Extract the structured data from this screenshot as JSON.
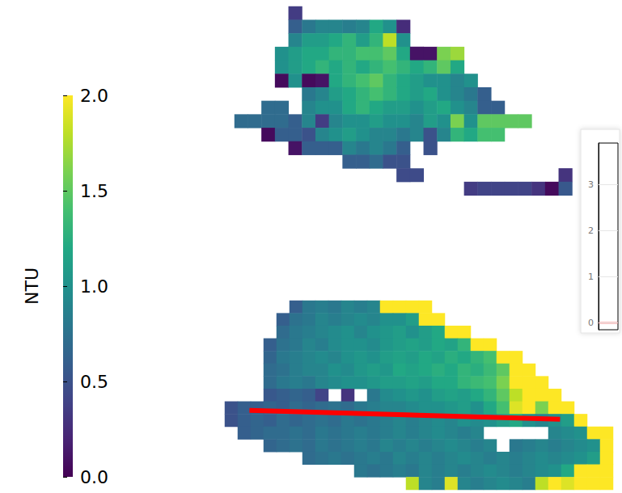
{
  "chart_data": [
    {
      "type": "heatmap",
      "tick_labels": false,
      "colorbar": {
        "label": "NTU",
        "range": [
          0,
          2
        ],
        "ticks": [
          {
            "value": 0,
            "label": "0.0"
          },
          {
            "value": 0.5,
            "label": "0.5"
          },
          {
            "value": 1,
            "label": "1.0"
          },
          {
            "value": 1.5,
            "label": "1.5"
          },
          {
            "value": 2,
            "label": "2.0"
          }
        ]
      },
      "cells": [
        [
          null,
          null,
          null,
          null,
          0.35,
          null,
          null,
          null,
          null,
          null,
          null,
          null,
          null,
          null,
          null,
          null,
          null,
          null,
          null,
          null,
          null,
          null,
          null,
          null,
          null
        ],
        [
          null,
          null,
          null,
          null,
          0.6,
          0.8,
          0.9,
          0.9,
          0.85,
          0.9,
          1.2,
          1.0,
          0.25,
          null,
          null,
          null,
          null,
          null,
          null,
          null,
          null,
          null,
          null,
          null,
          null
        ],
        [
          null,
          null,
          null,
          null,
          0.9,
          1.1,
          1.1,
          1.2,
          1.3,
          1.1,
          1.3,
          1.8,
          1.0,
          null,
          null,
          null,
          null,
          null,
          null,
          null,
          null,
          null,
          null,
          null,
          null
        ],
        [
          null,
          null,
          null,
          1.0,
          1.1,
          1.2,
          1.2,
          1.3,
          1.3,
          1.4,
          1.4,
          1.5,
          1.2,
          0.1,
          0.1,
          1.6,
          1.7,
          null,
          null,
          null,
          null,
          null,
          null,
          null,
          null
        ],
        [
          null,
          null,
          null,
          1.0,
          1.1,
          1.2,
          1.3,
          1.2,
          1.3,
          1.2,
          1.3,
          1.4,
          1.3,
          1.2,
          1.3,
          1.5,
          1.2,
          null,
          null,
          null,
          null,
          null,
          null,
          null,
          null
        ],
        [
          null,
          null,
          null,
          0.05,
          1.0,
          0.05,
          0.1,
          1.2,
          1.3,
          1.4,
          1.5,
          1.3,
          1.2,
          1.1,
          1.0,
          1.0,
          0.9,
          1.0,
          null,
          null,
          null,
          null,
          null,
          null,
          null
        ],
        [
          null,
          null,
          null,
          null,
          null,
          0.8,
          0.9,
          1.1,
          1.2,
          1.3,
          1.4,
          1.3,
          1.2,
          1.1,
          1.2,
          1.0,
          0.9,
          0.8,
          0.6,
          null,
          null,
          null,
          null,
          null,
          null
        ],
        [
          null,
          null,
          0.7,
          0.7,
          null,
          0.9,
          1.0,
          1.0,
          1.2,
          1.3,
          1.2,
          1.1,
          1.1,
          1.0,
          1.1,
          1.2,
          1.0,
          0.9,
          0.6,
          0.6,
          null,
          null,
          null,
          null,
          null
        ],
        [
          0.7,
          0.7,
          0.7,
          0.7,
          0.6,
          0.9,
          0.35,
          0.9,
          1.0,
          1.0,
          1.1,
          1.0,
          1.0,
          0.9,
          1.1,
          1.0,
          1.6,
          1.0,
          1.5,
          1.5,
          1.5,
          1.5,
          null,
          null,
          null
        ],
        [
          null,
          null,
          0.05,
          0.6,
          0.6,
          0.5,
          0.9,
          1.0,
          1.1,
          1.0,
          0.9,
          0.9,
          0.8,
          0.9,
          0.5,
          0.9,
          1.3,
          1.2,
          1.4,
          1.4,
          null,
          null,
          null,
          null,
          null
        ],
        [
          null,
          null,
          null,
          null,
          0.1,
          0.6,
          0.6,
          0.6,
          0.9,
          0.8,
          0.9,
          0.8,
          0.6,
          null,
          0.5,
          null,
          null,
          null,
          null,
          null,
          null,
          null,
          null,
          null,
          null
        ],
        [
          null,
          null,
          null,
          null,
          null,
          null,
          null,
          null,
          0.6,
          0.6,
          0.7,
          0.5,
          0.5,
          null,
          null,
          null,
          null,
          null,
          null,
          null,
          null,
          null,
          null,
          null,
          null
        ],
        [
          null,
          null,
          null,
          null,
          null,
          null,
          null,
          null,
          null,
          null,
          null,
          null,
          0.45,
          0.45,
          null,
          null,
          null,
          null,
          null,
          null,
          null,
          null,
          null,
          null,
          0.3
        ],
        [
          null,
          null,
          null,
          null,
          null,
          null,
          null,
          null,
          null,
          null,
          null,
          null,
          null,
          null,
          null,
          null,
          null,
          0.35,
          0.4,
          0.4,
          0.4,
          0.4,
          0.3,
          0.05,
          0.55
        ]
      ]
    },
    {
      "type": "heatmap",
      "tick_labels": false,
      "transect": {
        "x": [
          1.4,
          25.4
        ],
        "y": [
          8.2,
          8.9
        ],
        "color": "#ff0000"
      },
      "cells": [
        [
          null,
          null,
          null,
          null,
          null,
          0.6,
          0.8,
          0.85,
          0.8,
          0.9,
          0.85,
          0.9,
          2.0,
          2.0,
          2.0,
          2.0,
          null,
          null,
          null,
          null,
          null,
          null,
          null,
          null,
          null,
          null,
          null,
          null,
          null,
          null
        ],
        [
          null,
          null,
          null,
          null,
          0.6,
          0.75,
          0.8,
          0.9,
          0.85,
          0.9,
          0.95,
          0.9,
          1.0,
          1.0,
          1.1,
          2.0,
          2.0,
          null,
          null,
          null,
          null,
          null,
          null,
          null,
          null,
          null,
          null,
          null,
          null,
          null
        ],
        [
          null,
          null,
          null,
          null,
          0.7,
          0.8,
          0.85,
          0.9,
          0.95,
          1.0,
          0.9,
          1.0,
          1.05,
          1.1,
          1.0,
          1.1,
          1.2,
          2.0,
          2.0,
          null,
          null,
          null,
          null,
          null,
          null,
          null,
          null,
          null,
          null,
          null
        ],
        [
          null,
          null,
          null,
          0.6,
          0.75,
          0.8,
          0.9,
          0.85,
          0.95,
          1.0,
          1.0,
          0.95,
          1.05,
          1.1,
          1.15,
          1.1,
          1.2,
          1.15,
          1.3,
          2.0,
          2.0,
          null,
          null,
          null,
          null,
          null,
          null,
          null,
          null,
          null
        ],
        [
          null,
          null,
          null,
          0.65,
          0.8,
          0.85,
          0.9,
          0.95,
          0.9,
          1.0,
          1.05,
          1.0,
          1.1,
          1.15,
          1.1,
          1.2,
          1.15,
          1.25,
          1.2,
          1.3,
          1.4,
          2.0,
          2.0,
          null,
          null,
          null,
          null,
          null,
          null,
          null
        ],
        [
          null,
          null,
          null,
          0.7,
          0.75,
          0.85,
          0.9,
          0.9,
          1.0,
          0.95,
          1.05,
          1.1,
          1.05,
          1.2,
          1.15,
          1.2,
          1.25,
          1.2,
          1.3,
          1.25,
          1.35,
          1.5,
          2.0,
          2.0,
          null,
          null,
          null,
          null,
          null,
          null
        ],
        [
          null,
          null,
          null,
          0.7,
          0.8,
          0.85,
          0.8,
          0.9,
          0.95,
          1.0,
          1.0,
          1.05,
          1.1,
          1.1,
          1.15,
          1.1,
          1.2,
          1.2,
          1.3,
          1.35,
          1.4,
          1.6,
          2.0,
          2.0,
          2.0,
          null,
          null,
          null,
          null,
          null
        ],
        [
          null,
          null,
          null,
          0.55,
          0.6,
          0.65,
          0.6,
          0.4,
          null,
          0.3,
          null,
          0.8,
          0.95,
          1.0,
          1.05,
          1.0,
          1.1,
          1.15,
          1.1,
          1.2,
          1.3,
          1.5,
          1.8,
          2.0,
          2.0,
          2.0,
          null,
          null,
          null,
          null
        ],
        [
          0.5,
          0.6,
          0.6,
          0.65,
          0.6,
          0.7,
          0.65,
          0.7,
          0.75,
          0.7,
          0.8,
          0.85,
          0.9,
          0.9,
          0.95,
          1.0,
          1.0,
          1.05,
          1.1,
          1.0,
          1.2,
          1.4,
          1.9,
          2.0,
          1.6,
          2.0,
          2.0,
          null,
          null,
          null
        ],
        [
          0.5,
          0.6,
          0.65,
          0.6,
          0.7,
          0.65,
          0.7,
          0.75,
          0.7,
          0.8,
          0.75,
          0.8,
          0.85,
          0.9,
          0.85,
          0.9,
          0.95,
          0.9,
          1.0,
          0.95,
          1.0,
          1.1,
          1.2,
          1.0,
          0.9,
          1.0,
          1.1,
          2.0,
          null,
          null
        ],
        [
          null,
          0.6,
          0.65,
          0.7,
          0.7,
          0.75,
          0.7,
          0.8,
          0.75,
          0.8,
          0.85,
          0.8,
          0.85,
          0.9,
          0.85,
          0.9,
          0.95,
          0.9,
          0.85,
          0.9,
          null,
          null,
          null,
          null,
          null,
          0.9,
          0.95,
          1.0,
          2.0,
          2.0
        ],
        [
          null,
          null,
          null,
          0.65,
          0.7,
          0.75,
          0.7,
          0.8,
          0.75,
          0.8,
          0.85,
          0.8,
          0.9,
          0.85,
          0.9,
          0.85,
          0.9,
          0.95,
          0.9,
          0.85,
          0.9,
          null,
          0.8,
          0.85,
          0.9,
          0.85,
          0.9,
          0.95,
          1.0,
          2.0
        ],
        [
          null,
          null,
          null,
          null,
          null,
          null,
          0.7,
          0.75,
          0.8,
          0.75,
          0.8,
          0.85,
          0.8,
          0.9,
          0.85,
          0.9,
          0.85,
          0.9,
          0.95,
          0.9,
          0.85,
          0.9,
          0.85,
          0.9,
          0.95,
          0.9,
          0.95,
          1.0,
          1.1,
          2.0
        ],
        [
          null,
          null,
          null,
          null,
          null,
          null,
          null,
          null,
          null,
          null,
          0.8,
          0.75,
          0.8,
          0.85,
          0.8,
          0.9,
          0.85,
          0.9,
          0.85,
          0.9,
          0.95,
          0.9,
          0.85,
          0.9,
          0.95,
          1.0,
          1.2,
          2.0,
          2.0,
          2.0
        ],
        [
          null,
          null,
          null,
          null,
          null,
          null,
          null,
          null,
          null,
          null,
          null,
          null,
          null,
          null,
          1.8,
          0.9,
          0.85,
          1.9,
          0.9,
          0.85,
          0.9,
          0.95,
          0.9,
          0.85,
          1.8,
          2.0,
          1.9,
          2.0,
          2.0,
          2.0
        ]
      ]
    },
    {
      "type": "line",
      "x": [
        0,
        1
      ],
      "xlim": [
        0,
        1
      ],
      "ylim": [
        -0.15,
        3.9
      ],
      "yticks": [
        0,
        1,
        2,
        3
      ],
      "tick_labels": "y",
      "grid": true,
      "series": [
        {
          "color": "#ff0000",
          "values": [
            0,
            0
          ]
        }
      ]
    }
  ]
}
